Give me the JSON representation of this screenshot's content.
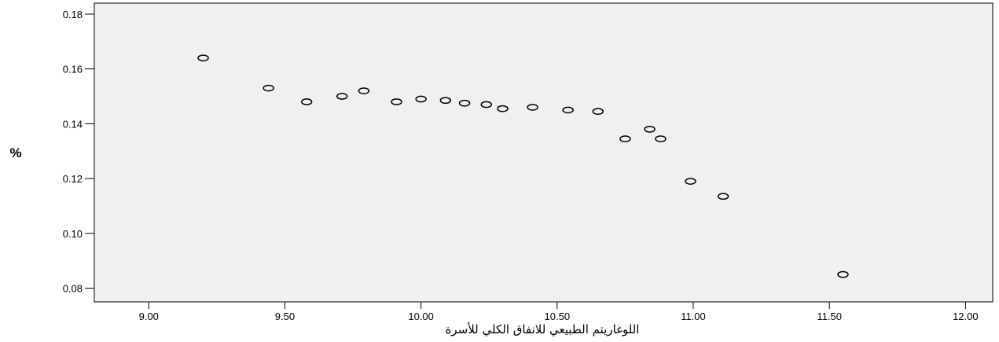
{
  "chart_data": {
    "type": "scatter",
    "title": "",
    "xlabel": "اللوغاريتم الطبيعي للانفاق الكلي للأسرة",
    "ylabel": "%",
    "xlim": [
      8.8,
      12.1
    ],
    "ylim": [
      0.075,
      0.184
    ],
    "xticks": [
      9.0,
      9.5,
      10.0,
      10.5,
      11.0,
      11.5,
      12.0
    ],
    "xtick_labels": [
      "9.00",
      "9.50",
      "10.00",
      "10.50",
      "11.00",
      "11.50",
      "12.00"
    ],
    "yticks": [
      0.08,
      0.1,
      0.12,
      0.14,
      0.16,
      0.18
    ],
    "ytick_labels": [
      "0.08",
      "0.10",
      "0.12",
      "0.14",
      "0.16",
      "0.18"
    ],
    "grid": false,
    "marker": "hollow-circle",
    "colors": {
      "plot_background": "#f0f0f0",
      "marker_stroke": "#000000",
      "axis": "#000000"
    },
    "points": [
      {
        "x": 9.2,
        "y": 0.164
      },
      {
        "x": 9.44,
        "y": 0.153
      },
      {
        "x": 9.58,
        "y": 0.148
      },
      {
        "x": 9.71,
        "y": 0.15
      },
      {
        "x": 9.79,
        "y": 0.152
      },
      {
        "x": 9.91,
        "y": 0.148
      },
      {
        "x": 10.0,
        "y": 0.149
      },
      {
        "x": 10.09,
        "y": 0.1485
      },
      {
        "x": 10.16,
        "y": 0.1475
      },
      {
        "x": 10.24,
        "y": 0.147
      },
      {
        "x": 10.3,
        "y": 0.1455
      },
      {
        "x": 10.41,
        "y": 0.146
      },
      {
        "x": 10.54,
        "y": 0.145
      },
      {
        "x": 10.65,
        "y": 0.1445
      },
      {
        "x": 10.75,
        "y": 0.1345
      },
      {
        "x": 10.84,
        "y": 0.138
      },
      {
        "x": 10.88,
        "y": 0.1345
      },
      {
        "x": 10.99,
        "y": 0.119
      },
      {
        "x": 11.11,
        "y": 0.1135
      },
      {
        "x": 11.55,
        "y": 0.085
      }
    ]
  }
}
